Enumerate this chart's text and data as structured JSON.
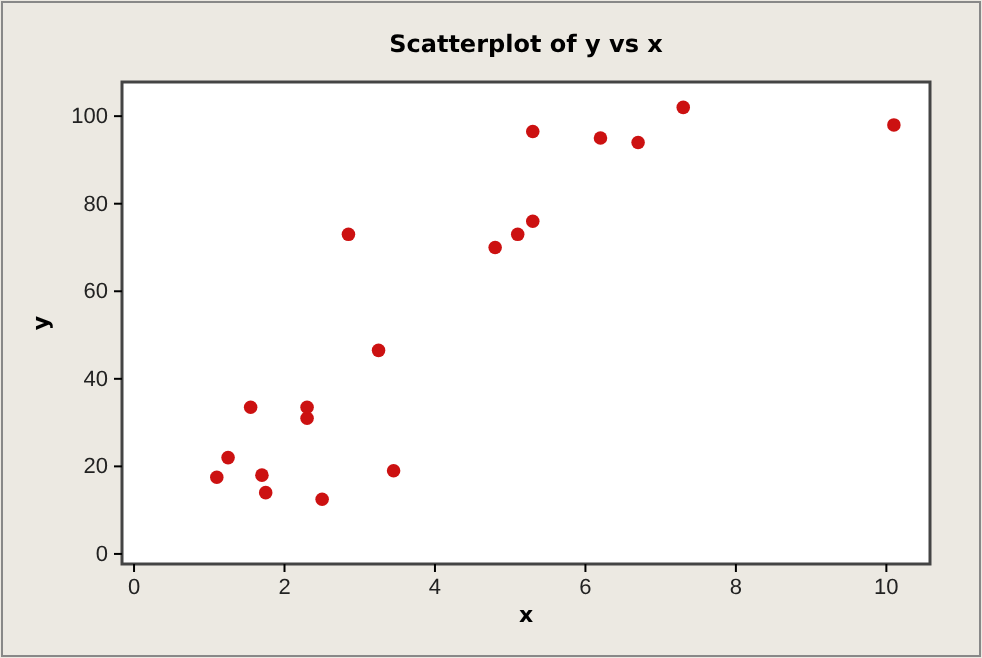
{
  "chart_data": {
    "type": "scatter",
    "title": "Scatterplot of y vs x",
    "xlabel": "x",
    "ylabel": "y",
    "x": [
      1.1,
      1.25,
      1.55,
      1.7,
      1.75,
      2.3,
      2.3,
      2.5,
      2.85,
      3.25,
      3.45,
      4.8,
      5.1,
      5.3,
      5.3,
      6.2,
      6.7,
      7.3,
      10.1
    ],
    "values": [
      17.5,
      22,
      33.5,
      18,
      14,
      31,
      33.5,
      12.5,
      73,
      46.5,
      19,
      70,
      73,
      76,
      96.5,
      95,
      94,
      102,
      98
    ],
    "color": "#cc1111",
    "marker": "circle",
    "xlim": [
      -0.16,
      10.58
    ],
    "ylim": [
      -2.3,
      107.8
    ],
    "xticks": [
      0,
      2,
      4,
      6,
      8,
      10
    ],
    "yticks": [
      0,
      20,
      40,
      60,
      80,
      100
    ]
  }
}
